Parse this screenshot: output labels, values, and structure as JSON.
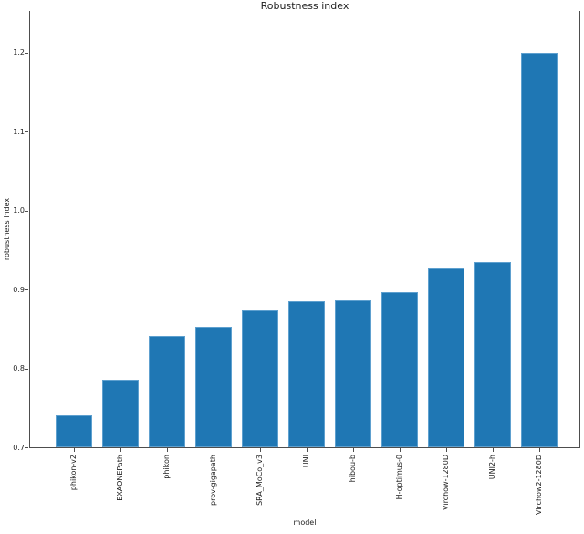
{
  "chart_data": {
    "type": "bar",
    "title": "Robustness index",
    "xlabel": "model",
    "ylabel": "robustness index",
    "categories": [
      "phikon-v2",
      "EXAONEPath",
      "phikon",
      "prov-gigapath",
      "SRA_MoCo_v3",
      "UNI",
      "hibou-b",
      "H-optimus-0",
      "Virchow-1280D",
      "UNI2-h",
      "Virchow2-1280D"
    ],
    "values": [
      0.74,
      0.786,
      0.841,
      0.853,
      0.874,
      0.885,
      0.886,
      0.897,
      0.927,
      0.935,
      1.2
    ],
    "yticks": [
      0.7,
      0.8,
      0.9,
      1.0,
      1.1,
      1.2
    ],
    "ytick_labels": [
      "0.7",
      "0.8",
      "0.9",
      "1.0",
      "1.1",
      "1.2"
    ],
    "ylim": [
      0.7,
      1.2527
    ],
    "bar_color": "#1f77b4",
    "bar_edge_color": "#5ea0cf",
    "spine_color": "#4d4d4d",
    "grid": false,
    "legend": null
  }
}
